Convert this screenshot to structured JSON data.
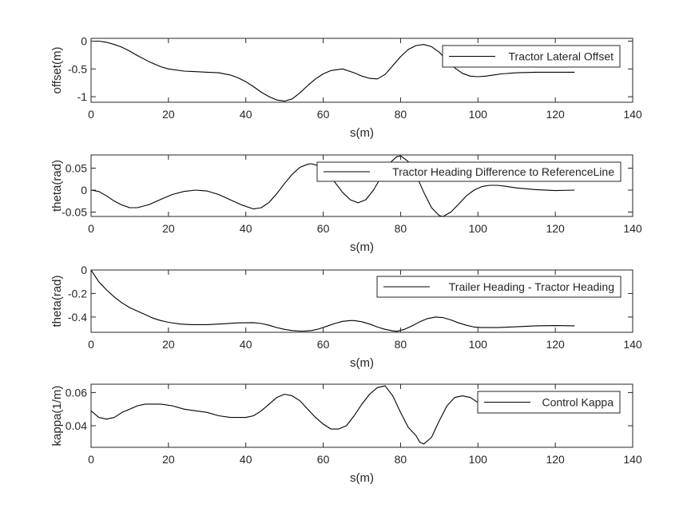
{
  "colors": {
    "axes": "#262626",
    "line": "#000000",
    "background": "#ffffff"
  },
  "chart_data": [
    {
      "type": "line",
      "xlabel": "s(m)",
      "ylabel": "offset(m)",
      "xlim": [
        0,
        140
      ],
      "ylim": [
        -1.1,
        0.05
      ],
      "xticks": [
        0,
        20,
        40,
        60,
        80,
        100,
        120,
        140
      ],
      "yticks": [
        0,
        -0.5,
        -1
      ],
      "ytick_labels": [
        "0",
        "-0.5",
        "-1"
      ],
      "grid": false,
      "legend_position": "top-right",
      "series": [
        {
          "name": "Tractor Lateral Offset",
          "x": [
            0,
            2,
            4,
            6,
            8,
            10,
            12,
            15,
            18,
            20,
            24,
            27,
            30,
            33,
            36,
            38,
            40,
            42,
            44,
            46,
            48,
            50,
            52,
            54,
            56,
            58,
            60,
            62,
            65,
            68,
            70,
            72,
            74,
            76,
            78,
            80,
            82,
            84,
            86,
            88,
            90,
            92,
            94,
            96,
            98,
            100,
            102,
            104,
            106,
            110,
            115,
            120,
            125
          ],
          "y": [
            0,
            0,
            -0.02,
            -0.06,
            -0.11,
            -0.18,
            -0.26,
            -0.37,
            -0.46,
            -0.5,
            -0.54,
            -0.55,
            -0.56,
            -0.57,
            -0.61,
            -0.66,
            -0.73,
            -0.82,
            -0.92,
            -1.0,
            -1.06,
            -1.08,
            -1.04,
            -0.93,
            -0.8,
            -0.68,
            -0.59,
            -0.53,
            -0.5,
            -0.57,
            -0.63,
            -0.67,
            -0.68,
            -0.6,
            -0.44,
            -0.28,
            -0.15,
            -0.08,
            -0.06,
            -0.1,
            -0.2,
            -0.35,
            -0.48,
            -0.58,
            -0.63,
            -0.64,
            -0.63,
            -0.61,
            -0.59,
            -0.57,
            -0.56,
            -0.56,
            -0.56
          ]
        }
      ]
    },
    {
      "type": "line",
      "xlabel": "s(m)",
      "ylabel": "theta(rad)",
      "xlim": [
        0,
        140
      ],
      "ylim": [
        -0.06,
        0.08
      ],
      "xticks": [
        0,
        20,
        40,
        60,
        80,
        100,
        120,
        140
      ],
      "yticks": [
        0.05,
        0,
        -0.05
      ],
      "ytick_labels": [
        "0.05",
        "0",
        "-0.05"
      ],
      "grid": false,
      "legend_position": "top-right",
      "series": [
        {
          "name": "Tractor Heading Difference to ReferenceLine",
          "x": [
            0,
            2,
            4,
            6,
            8,
            10,
            12,
            15,
            18,
            21,
            24,
            27,
            30,
            33,
            36,
            39,
            42,
            44,
            46,
            48,
            50,
            52,
            54,
            56,
            57,
            59,
            61,
            63,
            65,
            67,
            69,
            71,
            73,
            75,
            77,
            79,
            80,
            82,
            84,
            86,
            88,
            90,
            91,
            93,
            95,
            97,
            99,
            101,
            103,
            105,
            107,
            110,
            115,
            120,
            125
          ],
          "y": [
            0,
            -0.003,
            -0.013,
            -0.025,
            -0.034,
            -0.04,
            -0.04,
            -0.033,
            -0.021,
            -0.01,
            -0.003,
            0,
            -0.002,
            -0.01,
            -0.022,
            -0.034,
            -0.043,
            -0.04,
            -0.028,
            -0.008,
            0.015,
            0.036,
            0.052,
            0.059,
            0.06,
            0.055,
            0.04,
            0.018,
            -0.005,
            -0.022,
            -0.029,
            -0.022,
            0.0,
            0.03,
            0.06,
            0.076,
            0.078,
            0.065,
            0.035,
            -0.005,
            -0.04,
            -0.058,
            -0.06,
            -0.05,
            -0.032,
            -0.013,
            0.0,
            0.008,
            0.011,
            0.011,
            0.009,
            0.005,
            0.001,
            -0.001,
            0.0
          ]
        }
      ]
    },
    {
      "type": "line",
      "xlabel": "s(m)",
      "ylabel": "theta(rad)",
      "xlim": [
        0,
        140
      ],
      "ylim": [
        -0.53,
        0
      ],
      "xticks": [
        0,
        20,
        40,
        60,
        80,
        100,
        120,
        140
      ],
      "yticks": [
        0,
        -0.2,
        -0.4
      ],
      "ytick_labels": [
        "0",
        "-0.2",
        "-0.4"
      ],
      "grid": false,
      "legend_position": "top-right",
      "series": [
        {
          "name": "Trailer Heading - Tractor Heading",
          "x": [
            0,
            1,
            2,
            4,
            6,
            8,
            10,
            12,
            14,
            16,
            18,
            20,
            23,
            26,
            30,
            34,
            38,
            42,
            44,
            46,
            48,
            50,
            52,
            54,
            55,
            57,
            59,
            61,
            63,
            65,
            67,
            68,
            70,
            72,
            74,
            76,
            78,
            79,
            81,
            83,
            85,
            87,
            89,
            91,
            93,
            95,
            97,
            99,
            101,
            105,
            110,
            115,
            120,
            125
          ],
          "y": [
            0,
            -0.05,
            -0.1,
            -0.17,
            -0.23,
            -0.28,
            -0.32,
            -0.35,
            -0.38,
            -0.41,
            -0.43,
            -0.445,
            -0.46,
            -0.465,
            -0.465,
            -0.458,
            -0.45,
            -0.448,
            -0.455,
            -0.47,
            -0.49,
            -0.505,
            -0.515,
            -0.52,
            -0.52,
            -0.515,
            -0.5,
            -0.478,
            -0.455,
            -0.437,
            -0.43,
            -0.43,
            -0.44,
            -0.46,
            -0.485,
            -0.505,
            -0.518,
            -0.522,
            -0.505,
            -0.475,
            -0.44,
            -0.413,
            -0.4,
            -0.405,
            -0.425,
            -0.45,
            -0.47,
            -0.485,
            -0.49,
            -0.49,
            -0.483,
            -0.475,
            -0.473,
            -0.475
          ]
        }
      ]
    },
    {
      "type": "line",
      "xlabel": "s(m)",
      "ylabel": "kappa(1/m)",
      "xlim": [
        0,
        140
      ],
      "ylim": [
        0.027,
        0.065
      ],
      "xticks": [
        0,
        20,
        40,
        60,
        80,
        100,
        120,
        140
      ],
      "yticks": [
        0.06,
        0.04
      ],
      "ytick_labels": [
        "0.06",
        "0.04"
      ],
      "grid": false,
      "legend_position": "top-right",
      "series": [
        {
          "name": "Control Kappa",
          "x": [
            0,
            2,
            4,
            6,
            8,
            10,
            12,
            14,
            16,
            18,
            21,
            24,
            27,
            30,
            33,
            36,
            38,
            40,
            42,
            44,
            46,
            48,
            50,
            52,
            54,
            56,
            58,
            60,
            62,
            64,
            66,
            68,
            70,
            72,
            74,
            76,
            78,
            80,
            82,
            84,
            85,
            86,
            88,
            90,
            92,
            94,
            96,
            98,
            100,
            102,
            104,
            106,
            108,
            110,
            112,
            115,
            120,
            125
          ],
          "y": [
            0.049,
            0.045,
            0.044,
            0.045,
            0.048,
            0.05,
            0.052,
            0.053,
            0.053,
            0.053,
            0.052,
            0.05,
            0.049,
            0.048,
            0.046,
            0.045,
            0.045,
            0.045,
            0.046,
            0.049,
            0.053,
            0.057,
            0.059,
            0.058,
            0.055,
            0.05,
            0.045,
            0.041,
            0.038,
            0.038,
            0.04,
            0.046,
            0.053,
            0.059,
            0.063,
            0.064,
            0.058,
            0.048,
            0.039,
            0.034,
            0.03,
            0.029,
            0.033,
            0.043,
            0.052,
            0.057,
            0.058,
            0.057,
            0.054,
            0.051,
            0.049,
            0.048,
            0.048,
            0.048,
            0.049,
            0.05,
            0.05,
            0.05
          ]
        }
      ]
    }
  ]
}
